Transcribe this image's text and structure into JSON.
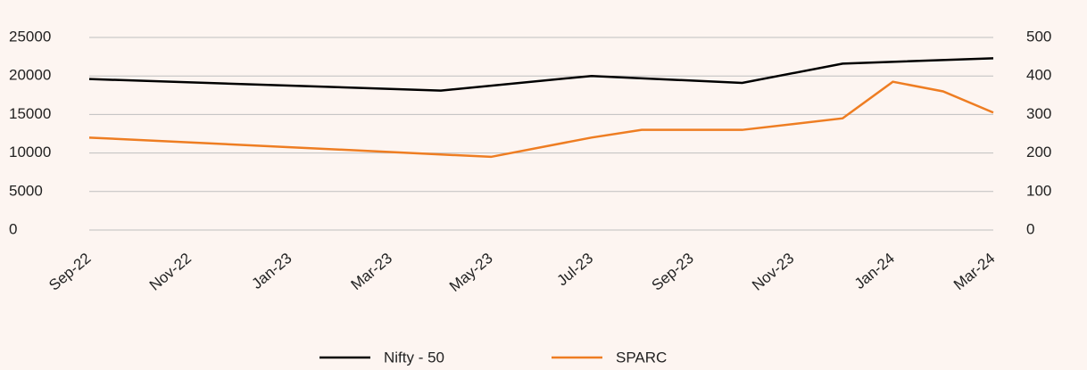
{
  "chart_data": {
    "type": "line",
    "xticks": [
      "Sep-22",
      "Nov-22",
      "Jan-23",
      "Mar-23",
      "May-23",
      "Jul-23",
      "Sep-23",
      "Nov-23",
      "Jan-24",
      "Mar-24"
    ],
    "series": [
      {
        "name": "Nifty - 50",
        "color": "#000000",
        "axis": "y",
        "x": [
          "Sep-22",
          "Apr-23",
          "Jul-23",
          "Oct-23",
          "Dec-23",
          "Mar-24"
        ],
        "values": [
          19600,
          18100,
          20000,
          19100,
          21600,
          22300
        ]
      },
      {
        "name": "SPARC",
        "color": "#ee7d22",
        "axis": "y2",
        "x": [
          "Sep-22",
          "May-23",
          "Jul-23",
          "Aug-23",
          "Oct-23",
          "Dec-23",
          "Jan-24",
          "Feb-24",
          "Mar-24"
        ],
        "values": [
          240,
          190,
          240,
          260,
          260,
          290,
          385,
          360,
          305
        ]
      }
    ],
    "ylim": [
      0,
      25000
    ],
    "yticks": [
      0,
      5000,
      10000,
      15000,
      20000,
      25000
    ],
    "y2lim": [
      0,
      500
    ],
    "y2ticks": [
      0,
      100,
      200,
      300,
      400,
      500
    ],
    "grid": true,
    "legend": "bottom"
  }
}
